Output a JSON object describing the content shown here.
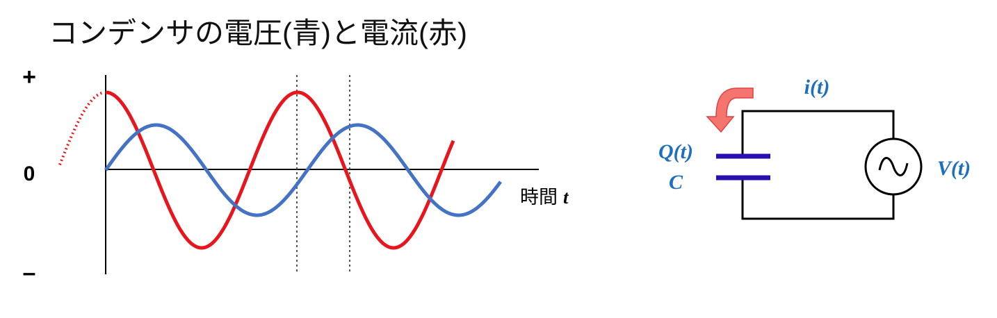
{
  "title": "コンデンサの電圧(青)と電流(赤)",
  "graph": {
    "plus_label": "+",
    "zero_label": "0",
    "minus_label": "–",
    "x_label": "時間",
    "x_symbol": "t"
  },
  "circuit": {
    "current_label": "i(t)",
    "charge_label": "Q(t)",
    "capacitance_label": "C",
    "voltage_label": "V(t)"
  }
}
